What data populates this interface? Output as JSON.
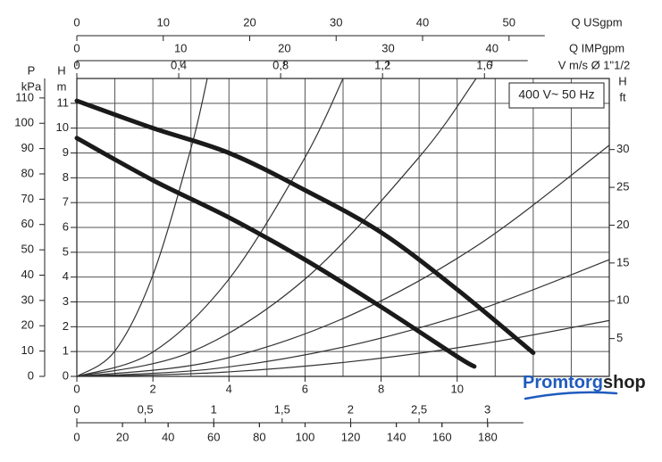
{
  "chart_data": {
    "type": "line",
    "annotation": "400 V~ 50 Hz",
    "xlim": [
      0,
      14
    ],
    "xticks": [
      0,
      2,
      4,
      6,
      8,
      10
    ],
    "x_minor_ticks": [
      1,
      3,
      5,
      7,
      9,
      11,
      12,
      13
    ],
    "ylim": [
      0,
      12
    ],
    "yticks": [
      0,
      1,
      2,
      3,
      4,
      5,
      6,
      7,
      8,
      9,
      10,
      11
    ],
    "y_label_lines": [
      "H",
      "m"
    ],
    "grid": true,
    "pump_curves": [
      {
        "color": "#1a1a1a",
        "x": [
          0,
          2,
          4,
          6,
          8,
          10,
          12
        ],
        "values": [
          11.1,
          10.0,
          9.0,
          7.5,
          5.8,
          3.5,
          0.95
        ]
      },
      {
        "color": "#1a1a1a",
        "x": [
          0,
          2,
          4,
          6,
          8,
          10,
          10.45
        ],
        "values": [
          9.6,
          7.9,
          6.4,
          4.7,
          2.8,
          0.8,
          0.4
        ]
      }
    ],
    "system_curves": [
      {
        "color": "#333333",
        "x": [
          0,
          1,
          2,
          3,
          3.43
        ],
        "values": [
          0,
          1.02,
          4.08,
          9.18,
          12
        ]
      },
      {
        "color": "#333333",
        "x": [
          0,
          2,
          4,
          6,
          7
        ],
        "values": [
          0,
          0.98,
          3.92,
          8.82,
          12
        ]
      },
      {
        "color": "#333333",
        "x": [
          0,
          3,
          6,
          9,
          10.5
        ],
        "values": [
          0,
          0.98,
          3.92,
          8.83,
          12
        ]
      },
      {
        "color": "#333333",
        "x": [
          0,
          3.5,
          7,
          10.5,
          14
        ],
        "values": [
          0,
          0.58,
          2.33,
          5.24,
          9.31
        ]
      },
      {
        "color": "#333333",
        "x": [
          0,
          3.5,
          7,
          10.5,
          14
        ],
        "values": [
          0,
          0.29,
          1.18,
          2.65,
          4.7
        ]
      },
      {
        "color": "#333333",
        "x": [
          0,
          3.5,
          7,
          10.5,
          14
        ],
        "values": [
          0,
          0.14,
          0.56,
          1.27,
          2.25
        ]
      }
    ],
    "secondary_axes": [
      {
        "side": "top",
        "label_lines": [
          "Q USgpm"
        ],
        "lim": [
          0,
          61.6
        ],
        "ticks": [
          0,
          10,
          20,
          30,
          40,
          50
        ]
      },
      {
        "side": "top",
        "label_lines": [
          "Q IMPgpm"
        ],
        "lim": [
          0,
          51.3
        ],
        "ticks": [
          0,
          10,
          20,
          30,
          40
        ]
      },
      {
        "side": "top",
        "label_lines": [
          "V m/s Ø 1\"1/2"
        ],
        "lim": [
          0,
          2.09
        ],
        "ticks": [
          0,
          {
            "value": 0.4,
            "label": "0,4"
          },
          {
            "value": 0.8,
            "label": "0,8"
          },
          {
            "value": 1.2,
            "label": "1,2"
          },
          {
            "value": 1.6,
            "label": "1,6"
          }
        ]
      },
      {
        "side": "left",
        "label_lines": [
          "P",
          "kPa"
        ],
        "lim": [
          0,
          117.7
        ],
        "ticks": [
          0,
          10,
          20,
          30,
          40,
          50,
          60,
          70,
          80,
          90,
          100,
          110
        ]
      },
      {
        "side": "right",
        "label_lines": [
          "H",
          "ft"
        ],
        "lim": [
          0,
          39.4
        ],
        "ticks": [
          5,
          10,
          15,
          20,
          25,
          30
        ]
      },
      {
        "side": "bottom",
        "label_lines": [],
        "lim": [
          0,
          3.89
        ],
        "ticks": [
          0,
          {
            "value": 0.5,
            "label": "0,5"
          },
          1,
          {
            "value": 1.5,
            "label": "1,5"
          },
          2,
          {
            "value": 2.5,
            "label": "2,5"
          },
          3
        ]
      },
      {
        "side": "bottom",
        "label_lines": [],
        "lim": [
          0,
          233.3
        ],
        "ticks": [
          0,
          20,
          40,
          60,
          80,
          100,
          120,
          140,
          160,
          180
        ]
      }
    ]
  },
  "logo": {
    "brand": "Promtorg",
    "suffix": "shop"
  }
}
